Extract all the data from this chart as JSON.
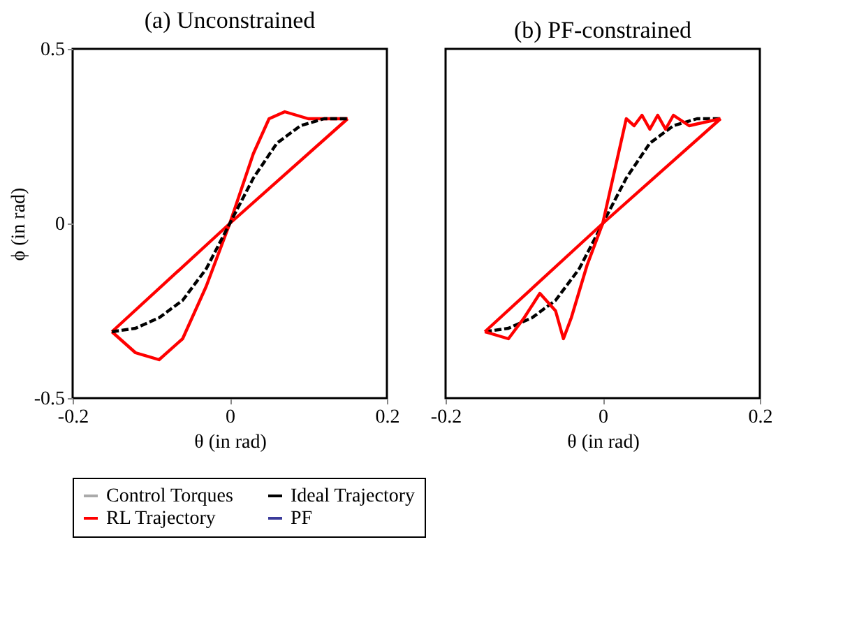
{
  "chart_data": [
    {
      "type": "line",
      "title": "(a) Unconstrained",
      "xlabel": "θ (in rad)",
      "ylabel": "ϕ (in rad)",
      "xlim": [
        -0.2,
        0.2
      ],
      "ylim": [
        -0.5,
        0.5
      ],
      "xticks": [
        -0.2,
        0,
        0.2
      ],
      "yticks": [
        -0.5,
        0,
        0.5
      ],
      "grid": false,
      "legend": "bottom",
      "series": [
        {
          "name": "Control Torques",
          "color": "#aaaaaa"
        },
        {
          "name": "Ideal Trajectory",
          "color": "#000000",
          "line_style": "dashed",
          "x": [
            -0.15,
            -0.12,
            -0.09,
            -0.06,
            -0.03,
            0,
            0.03,
            0.06,
            0.09,
            0.12,
            0.15
          ],
          "values": [
            -0.31,
            -0.3,
            -0.27,
            -0.22,
            -0.13,
            0,
            0.13,
            0.23,
            0.28,
            0.3,
            0.3
          ]
        },
        {
          "name": "RL Trajectory",
          "color": "#ff0000",
          "line_style": "solid",
          "x": [
            -0.15,
            -0.12,
            -0.09,
            -0.06,
            -0.03,
            0,
            0.03,
            0.05,
            0.07,
            0.1,
            0.15
          ],
          "values": [
            -0.31,
            -0.37,
            -0.39,
            -0.33,
            -0.18,
            0,
            0.2,
            0.3,
            0.32,
            0.3,
            0.3
          ]
        },
        {
          "name": "PF",
          "color": "#3b3b9a"
        },
        {
          "color": "#ff0000",
          "line_style": "solid",
          "x": [
            -0.15,
            0,
            0.15
          ],
          "values": [
            -0.31,
            0,
            0.3
          ]
        }
      ]
    },
    {
      "type": "line",
      "title": "(b) PF-constrained",
      "xlabel": "θ (in rad)",
      "xlim": [
        -0.2,
        0.2
      ],
      "ylim": [
        -0.5,
        0.5
      ],
      "xticks": [
        -0.2,
        0,
        0.2
      ],
      "tick_labels": "x",
      "grid": false,
      "series": [
        {
          "color": "#000000",
          "line_style": "dashed",
          "x": [
            -0.15,
            -0.12,
            -0.09,
            -0.06,
            -0.03,
            0,
            0.03,
            0.06,
            0.09,
            0.12,
            0.15
          ],
          "values": [
            -0.31,
            -0.3,
            -0.27,
            -0.22,
            -0.13,
            0,
            0.13,
            0.23,
            0.28,
            0.3,
            0.3
          ]
        },
        {
          "color": "#ff0000",
          "line_style": "solid",
          "x": [
            -0.15,
            -0.12,
            -0.1,
            -0.08,
            -0.06,
            -0.05,
            -0.04,
            -0.02,
            0,
            0.02,
            0.03,
            0.04,
            0.05,
            0.06,
            0.07,
            0.08,
            0.09,
            0.11,
            0.15
          ],
          "values": [
            -0.31,
            -0.33,
            -0.27,
            -0.2,
            -0.25,
            -0.33,
            -0.27,
            -0.12,
            0,
            0.2,
            0.3,
            0.28,
            0.31,
            0.27,
            0.31,
            0.27,
            0.31,
            0.28,
            0.3
          ]
        },
        {
          "color": "#ff0000",
          "line_style": "solid",
          "x": [
            -0.15,
            0,
            0.15
          ],
          "values": [
            -0.31,
            0,
            0.3
          ]
        }
      ]
    }
  ]
}
